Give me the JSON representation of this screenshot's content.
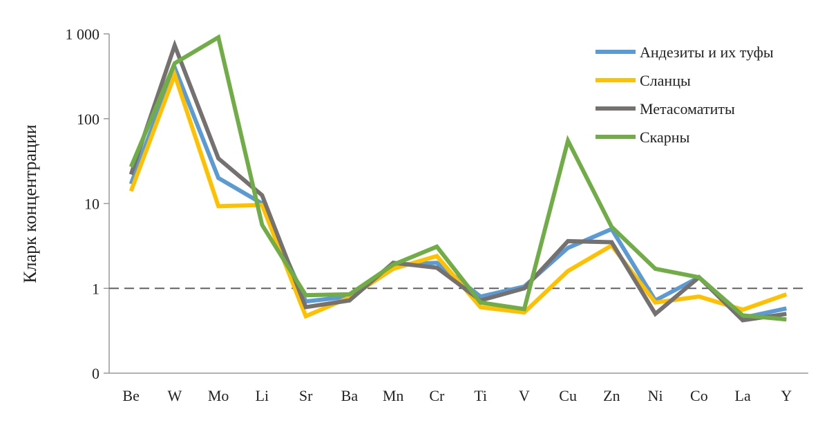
{
  "chart_data": {
    "type": "line",
    "title": "",
    "xlabel": "",
    "ylabel": "Кларк концентрации",
    "y_scale": "log",
    "ylim": [
      0.1,
      1000
    ],
    "y_ticks": [
      {
        "value": 0.1,
        "label": "0"
      },
      {
        "value": 1,
        "label": "1"
      },
      {
        "value": 10,
        "label": "10"
      },
      {
        "value": 100,
        "label": "100"
      },
      {
        "value": 1000,
        "label": "1 000"
      }
    ],
    "reference_line": {
      "value": 1,
      "style": "dashed",
      "color": "#606060"
    },
    "grid": false,
    "legend_position": "top-right",
    "categories": [
      "Be",
      "W",
      "Mo",
      "Li",
      "Sr",
      "Ba",
      "Mn",
      "Cr",
      "Ti",
      "V",
      "Cu",
      "Zn",
      "Ni",
      "Co",
      "La",
      "Y"
    ],
    "series": [
      {
        "name": "Андезиты и их туфы",
        "color": "#5B9BD5",
        "values": [
          17,
          400,
          20,
          10,
          0.7,
          0.8,
          1.9,
          2.0,
          0.8,
          1.05,
          3.0,
          5.0,
          0.72,
          1.35,
          0.45,
          0.58
        ]
      },
      {
        "name": "Сланцы",
        "color": "#FFC000",
        "values": [
          14,
          330,
          9.3,
          9.6,
          0.47,
          0.78,
          1.7,
          2.4,
          0.6,
          0.52,
          1.6,
          3.2,
          0.68,
          0.8,
          0.56,
          0.85
        ]
      },
      {
        "name": "Метасоматиты",
        "color": "#767171",
        "values": [
          22,
          730,
          34,
          12.5,
          0.6,
          0.72,
          2.0,
          1.75,
          0.72,
          1.0,
          3.6,
          3.5,
          0.5,
          1.35,
          0.42,
          0.5
        ]
      },
      {
        "name": "Скарны",
        "color": "#70AD47",
        "values": [
          27,
          450,
          910,
          5.6,
          0.83,
          0.85,
          1.9,
          3.1,
          0.68,
          0.57,
          55,
          5.3,
          1.7,
          1.35,
          0.48,
          0.43
        ]
      }
    ]
  }
}
